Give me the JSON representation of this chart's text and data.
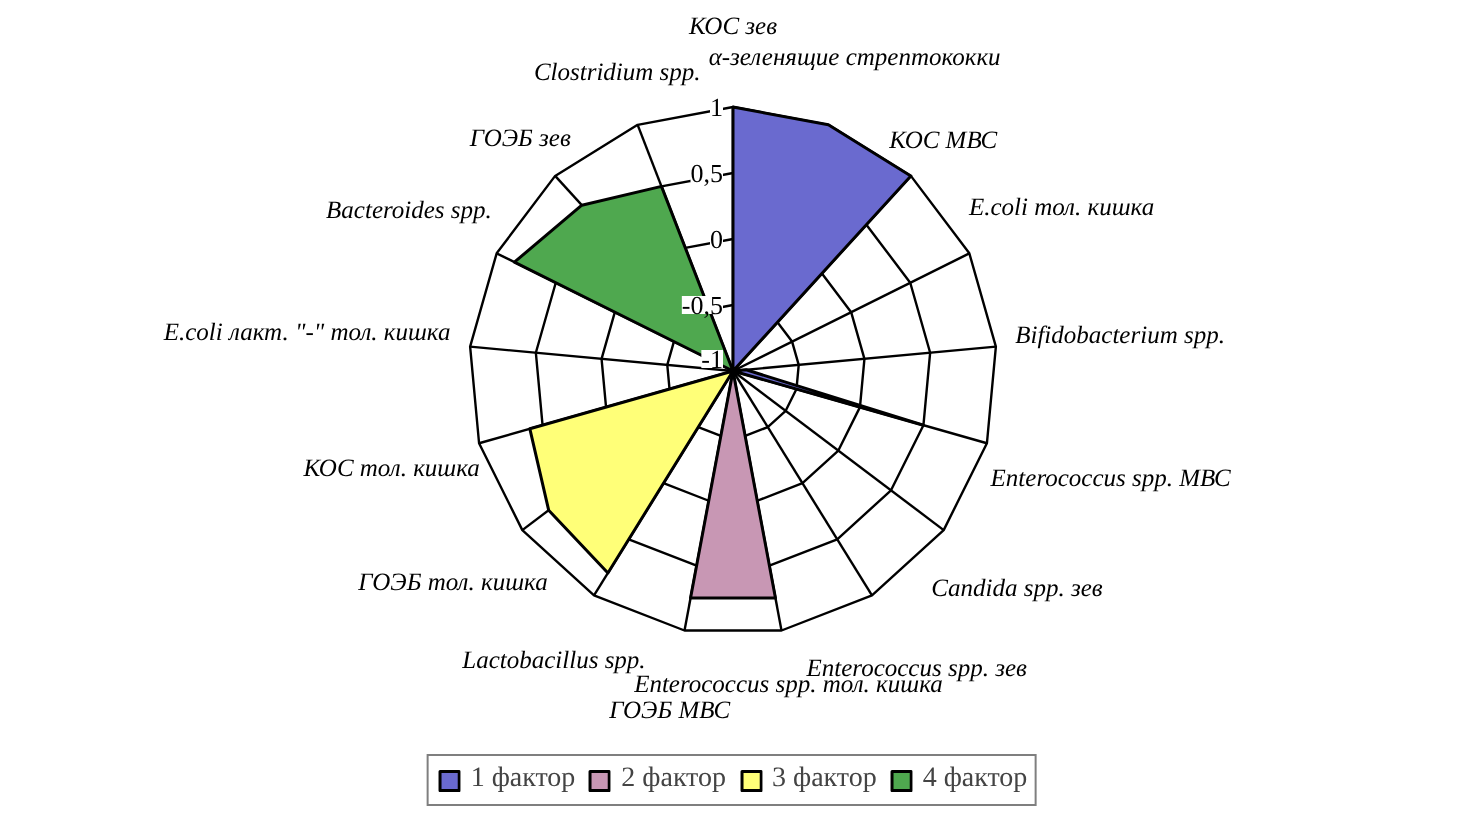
{
  "chart_data": {
    "type": "radar",
    "categories": [
      "КОС зев",
      "α-зеленящие стрептококки",
      "КОС МВС",
      "E.coli тол. кишка",
      "Bifidobacterium spp.",
      "Enterococcus spp. МВС",
      "Candida  spp. зев",
      "Enterococcus spp. зев",
      "Enterococcus  spp. тол. кишка",
      "ГОЭБ МВС",
      "Lactobacillus spp.",
      "ГОЭБ тол. кишка",
      "КОС тол. кишка",
      "E.coli лакт. \"-\" тол. кишка",
      "Bacteroides spp.",
      "ГОЭБ зев",
      "Clostridium spp."
    ],
    "series": [
      {
        "name": "1 фактор",
        "color": "#6a6acf",
        "values": [
          1,
          1,
          1,
          -1,
          -0.9,
          0.5,
          -1,
          -1,
          -1,
          -1,
          -1,
          -1,
          -1,
          -1,
          -1,
          -1,
          -1
        ]
      },
      {
        "name": "2 фактор",
        "color": "#c897b4",
        "values": [
          -1,
          -1,
          -1,
          -1,
          -1,
          -1,
          -1,
          -1,
          0.75,
          0.75,
          -1,
          -1,
          -1,
          -1,
          -1,
          -1,
          -1
        ]
      },
      {
        "name": "3 фактор",
        "color": "#ffff78",
        "values": [
          -1,
          -1,
          -1,
          -1,
          -1,
          -1,
          -1,
          -1,
          -1,
          -1,
          0.8,
          0.75,
          0.6,
          -1,
          -1,
          -1,
          -1
        ]
      },
      {
        "name": "4 фактор",
        "color": "#4fa84f",
        "values": [
          -1,
          -1,
          -1,
          -1,
          -1,
          -1,
          -1,
          -1,
          -1,
          -1,
          -1,
          -1,
          -1,
          -1,
          0.85,
          0.7,
          0.5
        ]
      }
    ],
    "ylim": [
      -1,
      1
    ],
    "yticks": [
      -1,
      {
        "value": -0.5,
        "label": "-0,5"
      },
      0,
      {
        "value": 0.5,
        "label": "0,5"
      },
      1
    ],
    "grid": true,
    "legend": "bottom"
  }
}
